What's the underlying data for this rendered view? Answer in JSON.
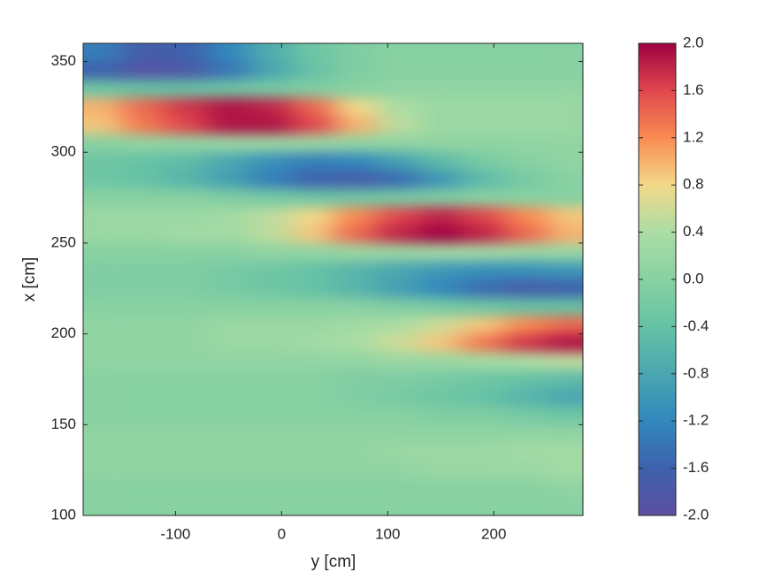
{
  "chart_data": {
    "type": "heatmap",
    "xlabel": "y [cm]",
    "ylabel": "x [cm]",
    "xlim": [
      -187,
      284
    ],
    "ylim": [
      100,
      360
    ],
    "xticks": [
      -100,
      0,
      100,
      200
    ],
    "yticks": [
      100,
      150,
      200,
      250,
      300,
      350
    ],
    "x": [
      -170,
      -130,
      -90,
      -50,
      -10,
      30,
      70,
      110,
      150,
      190,
      230,
      270
    ],
    "y": [
      355,
      345,
      335,
      325,
      315,
      305,
      295,
      285,
      275,
      265,
      255,
      245,
      235,
      225,
      215,
      205,
      195,
      185,
      175,
      165,
      155,
      145,
      135,
      125,
      115,
      105
    ],
    "z": [
      [
        -1.3,
        -1.7,
        -1.6,
        -1.2,
        -0.7,
        -0.3,
        -0.1,
        0,
        0,
        0,
        0,
        0
      ],
      [
        -1.6,
        -1.9,
        -1.8,
        -1.4,
        -0.8,
        -0.4,
        -0.1,
        0,
        0,
        0,
        0,
        0
      ],
      [
        -0.3,
        -0.4,
        -0.4,
        -0.3,
        -0.2,
        -0.1,
        0,
        0.1,
        0.1,
        0.1,
        0.1,
        0.1
      ],
      [
        1.0,
        1.4,
        1.7,
        1.9,
        1.8,
        1.4,
        0.8,
        0.4,
        0.2,
        0.2,
        0.2,
        0.2
      ],
      [
        0.9,
        1.3,
        1.6,
        1.9,
        1.9,
        1.6,
        1.0,
        0.5,
        0.2,
        0.2,
        0.2,
        0.2
      ],
      [
        0,
        0.1,
        0.1,
        0.2,
        0.2,
        0.2,
        0.1,
        0.1,
        0.1,
        0.1,
        0.1,
        0.1
      ],
      [
        -0.3,
        -0.4,
        -0.5,
        -0.8,
        -1.1,
        -1.3,
        -1.2,
        -0.9,
        -0.5,
        -0.2,
        0,
        0.1
      ],
      [
        -0.3,
        -0.4,
        -0.6,
        -0.9,
        -1.3,
        -1.6,
        -1.7,
        -1.5,
        -1.0,
        -0.5,
        -0.2,
        0
      ],
      [
        0,
        0,
        0,
        -0.1,
        -0.2,
        -0.3,
        -0.3,
        -0.2,
        -0.1,
        0,
        0,
        0
      ],
      [
        0.2,
        0.2,
        0.2,
        0.3,
        0.5,
        0.8,
        1.2,
        1.6,
        1.8,
        1.6,
        1.2,
        0.9
      ],
      [
        0.2,
        0.2,
        0.3,
        0.3,
        0.5,
        0.9,
        1.4,
        1.8,
        2.0,
        1.8,
        1.4,
        1.0
      ],
      [
        0,
        0,
        0,
        0,
        0.1,
        0.1,
        0.2,
        0.2,
        0.3,
        0.3,
        0.2,
        0.2
      ],
      [
        -0.1,
        -0.1,
        -0.1,
        -0.2,
        -0.3,
        -0.4,
        -0.6,
        -0.8,
        -1.0,
        -1.1,
        -1.1,
        -1.0
      ],
      [
        -0.1,
        -0.1,
        -0.1,
        -0.2,
        -0.3,
        -0.4,
        -0.6,
        -0.9,
        -1.2,
        -1.5,
        -1.7,
        -1.6
      ],
      [
        0,
        0,
        0,
        0,
        0,
        0,
        0,
        -0.1,
        -0.2,
        -0.3,
        -0.4,
        -0.4
      ],
      [
        0.1,
        0.1,
        0.1,
        0.2,
        0.2,
        0.2,
        0.3,
        0.4,
        0.6,
        0.9,
        1.2,
        1.4
      ],
      [
        0.1,
        0.1,
        0.1,
        0.2,
        0.2,
        0.3,
        0.4,
        0.6,
        0.9,
        1.3,
        1.7,
        1.9
      ],
      [
        0.1,
        0.1,
        0.1,
        0.1,
        0.1,
        0.1,
        0.1,
        0.2,
        0.2,
        0.3,
        0.4,
        0.5
      ],
      [
        0,
        0,
        0,
        0,
        0,
        0,
        -0.1,
        -0.1,
        -0.2,
        -0.3,
        -0.4,
        -0.5
      ],
      [
        0,
        0,
        0,
        0,
        0,
        0,
        -0.1,
        -0.2,
        -0.3,
        -0.4,
        -0.6,
        -0.8
      ],
      [
        0,
        0,
        0,
        0,
        0,
        0,
        0,
        0,
        -0.1,
        -0.1,
        -0.2,
        -0.3
      ],
      [
        0.1,
        0.1,
        0.1,
        0.1,
        0.1,
        0.1,
        0.1,
        0.1,
        0.1,
        0.1,
        0.1,
        0.1
      ],
      [
        0.1,
        0.1,
        0.1,
        0.1,
        0.1,
        0.1,
        0.1,
        0.2,
        0.2,
        0.2,
        0.3,
        0.3
      ],
      [
        0.1,
        0.1,
        0.1,
        0.1,
        0.1,
        0.1,
        0.1,
        0.1,
        0.2,
        0.2,
        0.2,
        0.3
      ],
      [
        0,
        0,
        0,
        0,
        0,
        0,
        0,
        0,
        0,
        0,
        0,
        0.1
      ],
      [
        0,
        0,
        0,
        0,
        0,
        0,
        0,
        0,
        0,
        0,
        0,
        0
      ]
    ],
    "clim": [
      -2,
      2
    ],
    "colormap": [
      "#5e4fa2",
      "#3d62ad",
      "#3288bd",
      "#4aa6b0",
      "#66c2a5",
      "#88d1a2",
      "#abdda4",
      "#f3d98a",
      "#f88b52",
      "#e0474d",
      "#9e0142"
    ],
    "cticks": [
      {
        "value": -2,
        "label": "-2.0"
      },
      -1.6,
      -1.2,
      -0.8,
      -0.4,
      {
        "value": 0,
        "label": "0.0"
      },
      0.4,
      0.8,
      1.2,
      1.6,
      {
        "value": 2,
        "label": "2.0"
      }
    ]
  }
}
